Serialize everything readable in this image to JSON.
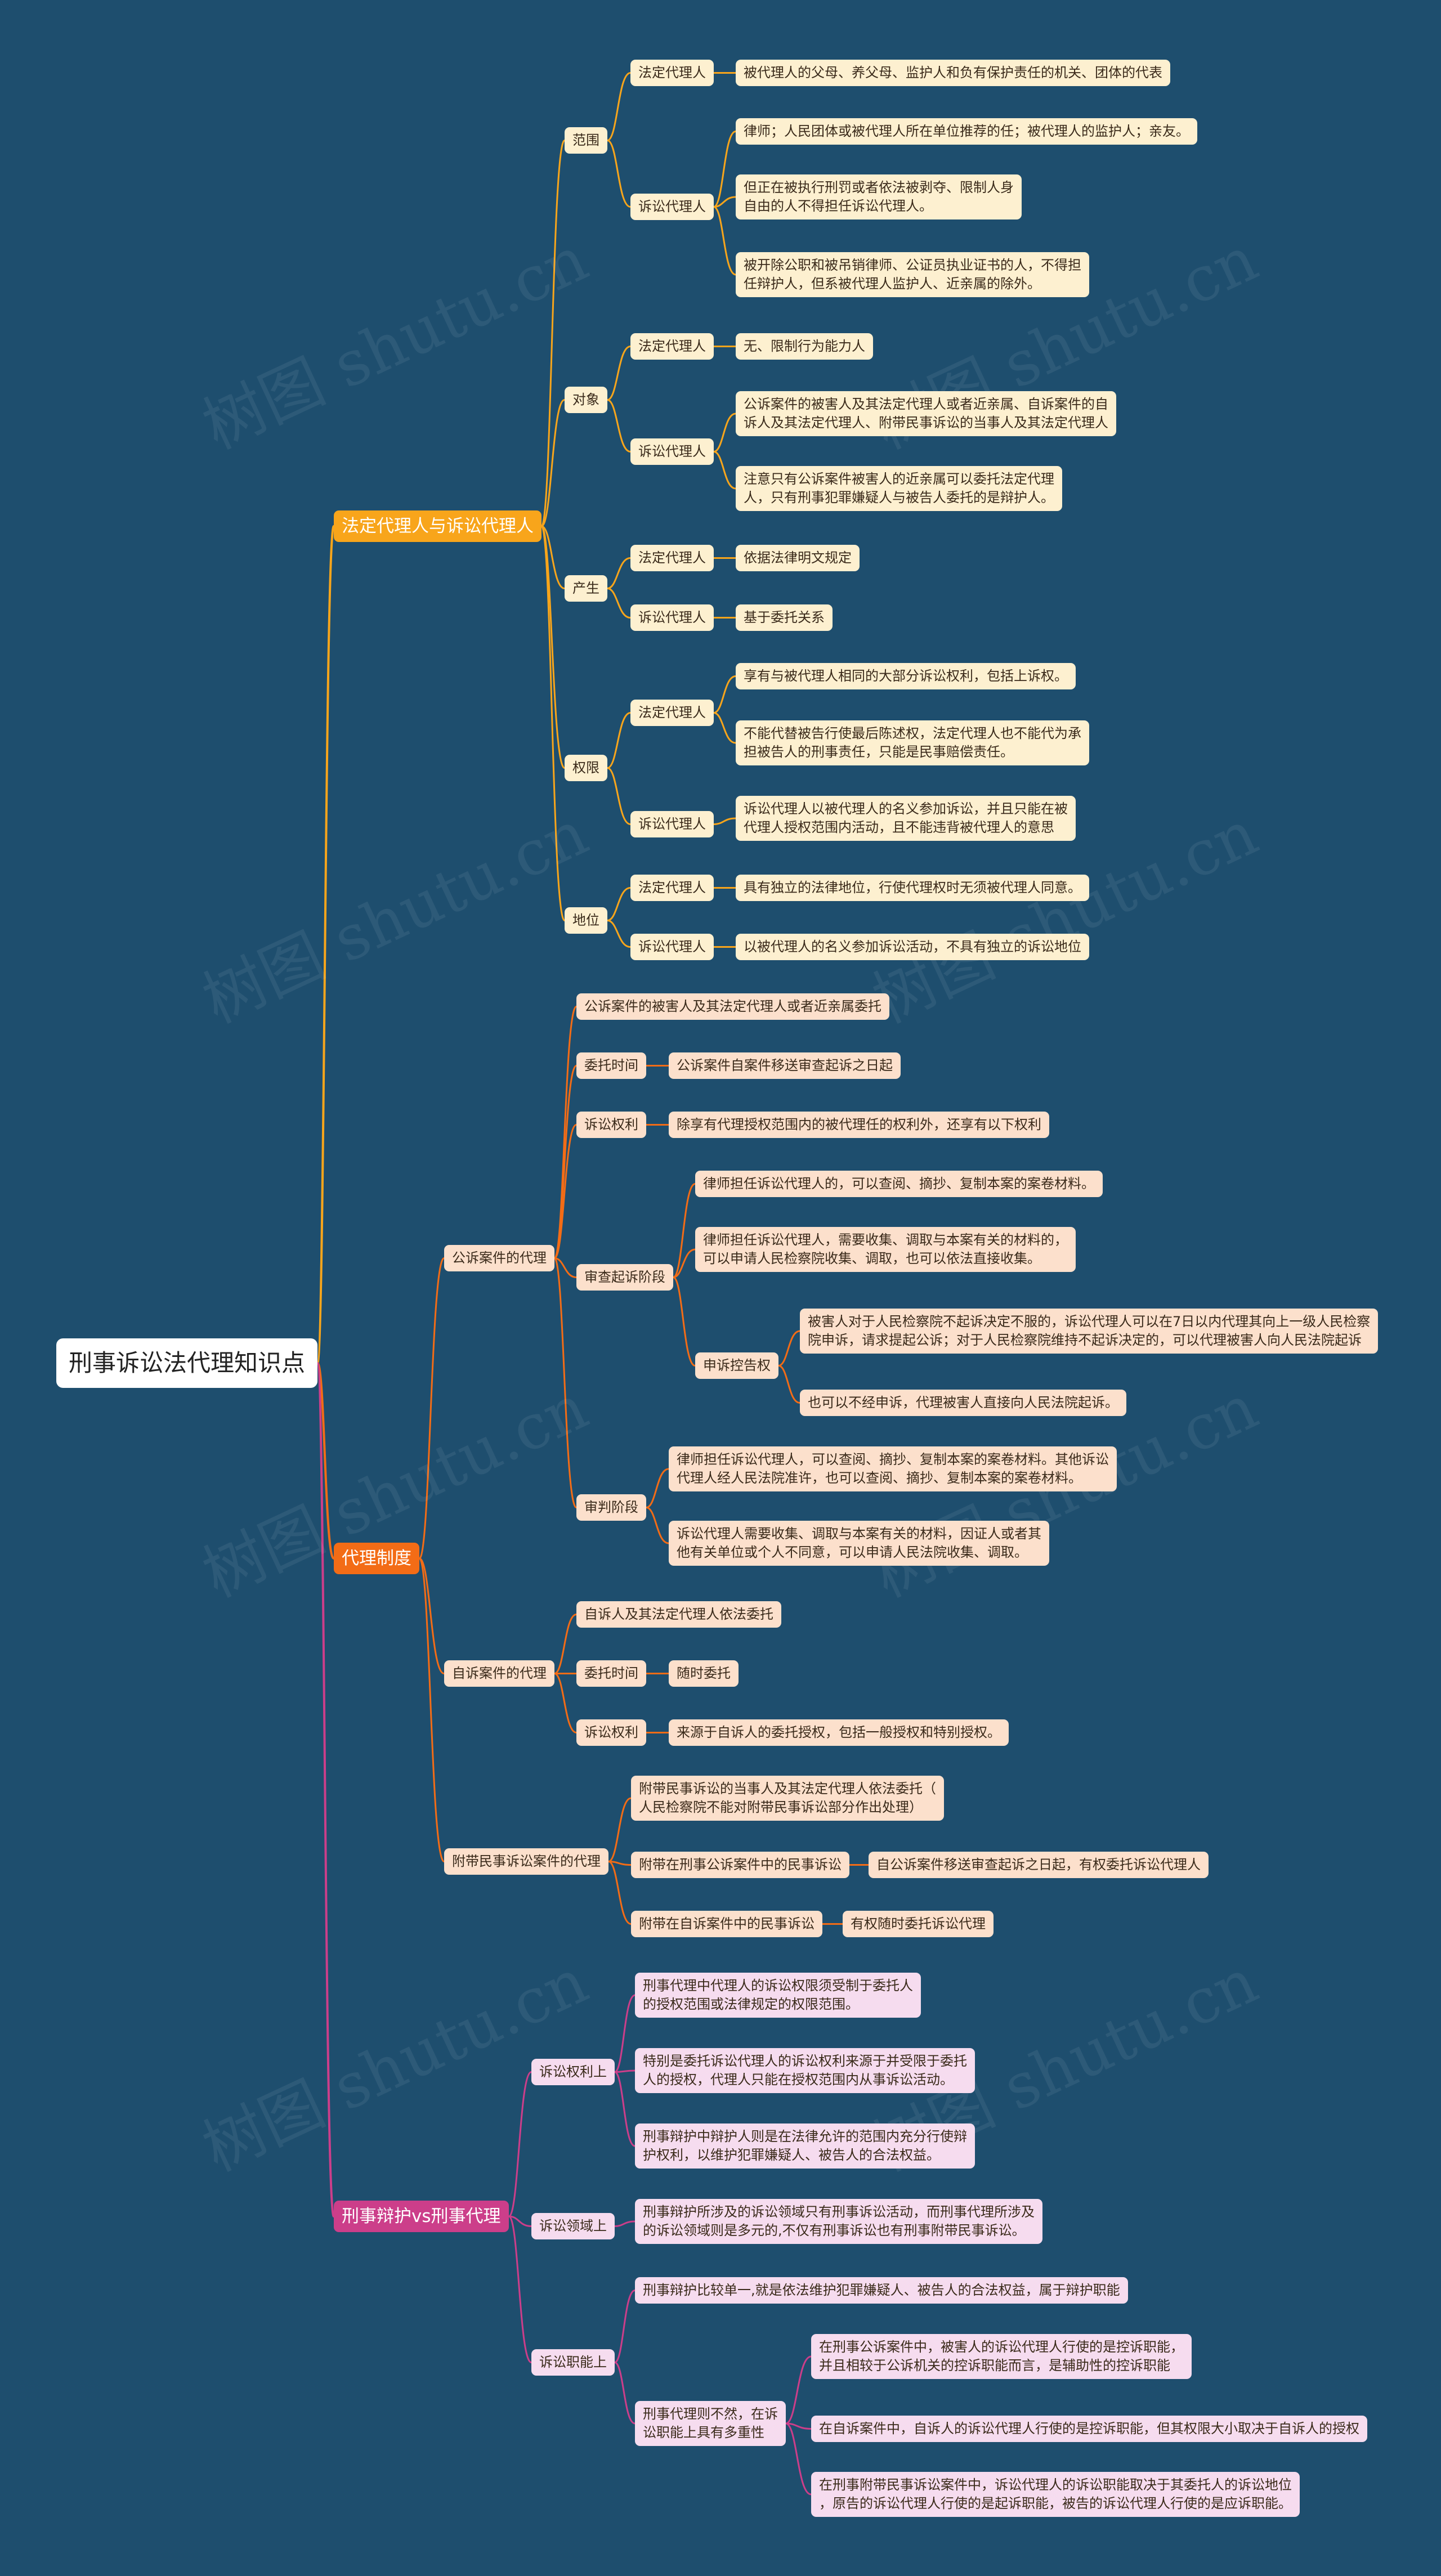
{
  "colors": {
    "background": "#1e4e6e",
    "branch1": "#f8a51b",
    "branch2": "#f36c16",
    "branch3": "#cc3e8a"
  },
  "watermark": "树图 shutu.cn",
  "root": "刑事诉讼法代理知识点",
  "branch1": {
    "title": "法定代理人与诉讼代理人",
    "scope": {
      "label": "范围",
      "legal_label": "法定代理人",
      "legal_text": "被代理人的父母、养父母、监护人和负有保护责任的机关、团体的代表",
      "litig_label": "诉讼代理人",
      "litig_items": [
        "律师；人民团体或被代理人所在单位推荐的任；被代理人的监护人；亲友。",
        "但正在被执行刑罚或者依法被剥夺、限制人身\n自由的人不得担任诉讼代理人。",
        "被开除公职和被吊销律师、公证员执业证书的人，不得担\n任辩护人，但系被代理人监护人、近亲属的除外。"
      ]
    },
    "object": {
      "label": "对象",
      "legal_label": "法定代理人",
      "legal_text": "无、限制行为能力人",
      "litig_label": "诉讼代理人",
      "litig_items": [
        "公诉案件的被害人及其法定代理人或者近亲属、自诉案件的自\n诉人及其法定代理人、附带民事诉讼的当事人及其法定代理人",
        "注意只有公诉案件被害人的近亲属可以委托法定代理\n人，只有刑事犯罪嫌疑人与被告人委托的是辩护人。"
      ]
    },
    "origin": {
      "label": "产生",
      "legal_label": "法定代理人",
      "legal_text": "依据法律明文规定",
      "litig_label": "诉讼代理人",
      "litig_text": "基于委托关系"
    },
    "rights": {
      "label": "权限",
      "legal_label": "法定代理人",
      "legal_items": [
        "享有与被代理人相同的大部分诉讼权利，包括上诉权。",
        "不能代替被告行使最后陈述权，法定代理人也不能代为承\n担被告人的刑事责任，只能是民事赔偿责任。"
      ],
      "litig_label": "诉讼代理人",
      "litig_text": "诉讼代理人以被代理人的名义参加诉讼，并且只能在被\n代理人授权范围内活动，且不能违背被代理人的意思"
    },
    "status": {
      "label": "地位",
      "legal_label": "法定代理人",
      "legal_text": "具有独立的法律地位，行使代理权时无须被代理人同意。",
      "litig_label": "诉讼代理人",
      "litig_text": "以被代理人的名义参加诉讼活动，不具有独立的诉讼地位"
    }
  },
  "branch2": {
    "title": "代理制度",
    "public": {
      "label": "公诉案件的代理",
      "entrust": "公诉案件的被害人及其法定代理人或者近亲属委托",
      "time_label": "委托时间",
      "time_text": "公诉案件自案件移送审查起诉之日起",
      "rights_label": "诉讼权利",
      "rights_text": "除享有代理授权范围内的被代理任的权利外，还享有以下权利",
      "review_label": "审查起诉阶段",
      "review_items": [
        "律师担任诉讼代理人的，可以查阅、摘抄、复制本案的案卷材料。",
        "律师担任诉讼代理人，需要收集、调取与本案有关的材料的，\n可以申请人民检察院收集、调取，也可以依法直接收集。"
      ],
      "appeal_label": "申诉控告权",
      "appeal_items": [
        "被害人对于人民检察院不起诉决定不服的，诉讼代理人可以在7日以内代理其向上一级人民检察\n院申诉，请求提起公诉；对于人民检察院维持不起诉决定的，可以代理被害人向人民法院起诉",
        "也可以不经申诉，代理被害人直接向人民法院起诉。"
      ],
      "trial_label": "审判阶段",
      "trial_items": [
        "律师担任诉讼代理人，可以查阅、摘抄、复制本案的案卷材料。其他诉讼\n代理人经人民法院准许，也可以查阅、摘抄、复制本案的案卷材料。",
        "诉讼代理人需要收集、调取与本案有关的材料，因证人或者其\n他有关单位或个人不同意，可以申请人民法院收集、调取。"
      ]
    },
    "private": {
      "label": "自诉案件的代理",
      "entrust": "自诉人及其法定代理人依法委托",
      "time_label": "委托时间",
      "time_text": "随时委托",
      "rights_label": "诉讼权利",
      "rights_text": "来源于自诉人的委托授权，包括一般授权和特别授权。"
    },
    "civil": {
      "label": "附带民事诉讼案件的代理",
      "entrust": "附带民事诉讼的当事人及其法定代理人依法委托（\n人民检察院不能对附带民事诉讼部分作出处理）",
      "public_label": "附带在刑事公诉案件中的民事诉讼",
      "public_text": "自公诉案件移送审查起诉之日起，有权委托诉讼代理人",
      "private_label": "附带在自诉案件中的民事诉讼",
      "private_text": "有权随时委托诉讼代理"
    }
  },
  "branch3": {
    "title": "刑事辩护vs刑事代理",
    "rights": {
      "label": "诉讼权利上",
      "items": [
        "刑事代理中代理人的诉讼权限须受制于委托人\n的授权范围或法律规定的权限范围。",
        "特别是委托诉讼代理人的诉讼权利来源于并受限于委托\n人的授权，代理人只能在授权范围内从事诉讼活动。",
        "刑事辩护中辩护人则是在法律允许的范围内充分行使辩\n护权利，以维护犯罪嫌疑人、被告人的合法权益。"
      ]
    },
    "domain": {
      "label": "诉讼领域上",
      "text": "刑事辩护所涉及的诉讼领域只有刑事诉讼活动，而刑事代理所涉及\n的诉讼领域则是多元的,不仅有刑事诉讼也有刑事附带民事诉讼。"
    },
    "function": {
      "label": "诉讼职能上",
      "defense_text": "刑事辩护比较单一,就是依法维护犯罪嫌疑人、被告人的合法权益，属于辩护职能",
      "agency_label": "刑事代理则不然，在诉\n讼职能上具有多重性",
      "agency_items": [
        "在刑事公诉案件中，被害人的诉讼代理人行使的是控诉职能，\n并且相较于公诉机关的控诉职能而言，是辅助性的控诉职能",
        "在自诉案件中，自诉人的诉讼代理人行使的是控诉职能，但其权限大小取决于自诉人的授权",
        "在刑事附带民事诉讼案件中，诉讼代理人的诉讼职能取决于其委托人的诉讼地位\n，原告的诉讼代理人行使的是起诉职能，被告的诉讼代理人行使的是应诉职能。"
      ]
    }
  }
}
